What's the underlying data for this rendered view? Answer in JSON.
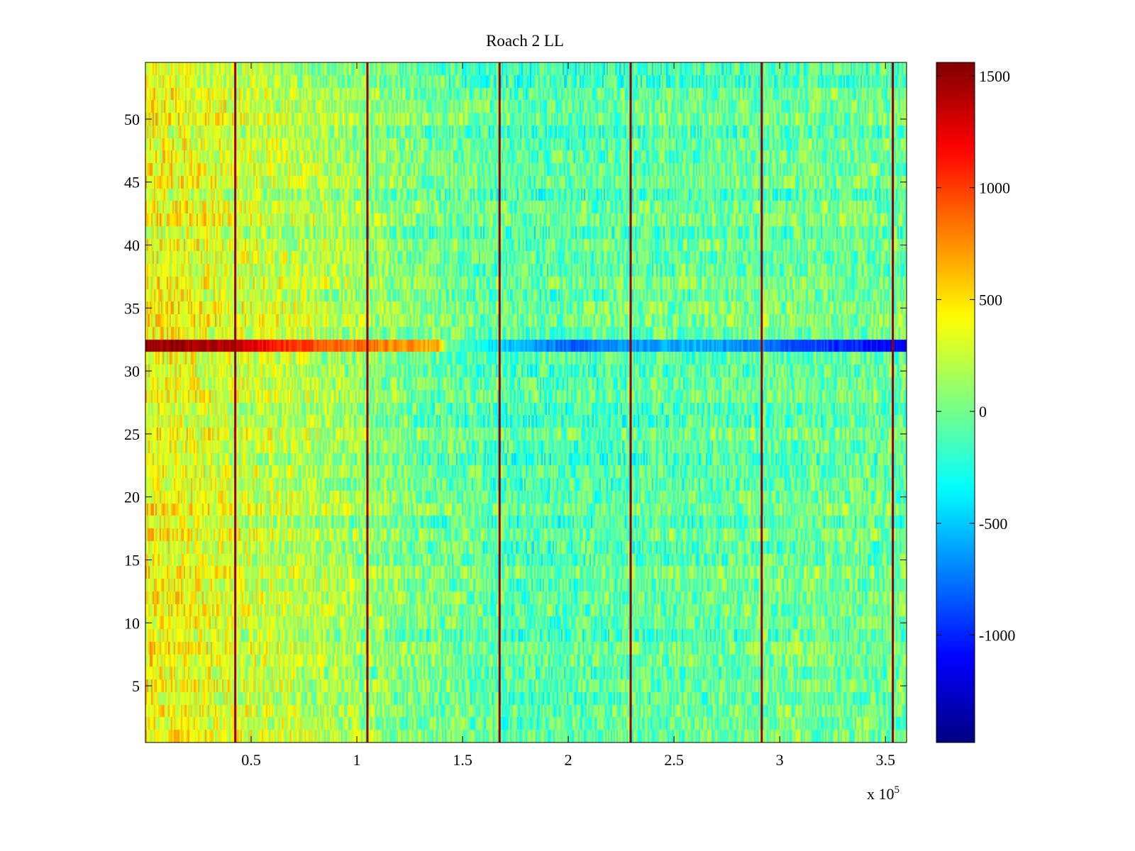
{
  "chart_data": {
    "type": "heatmap",
    "title": "Roach 2 LL",
    "xlabel": "",
    "ylabel": "",
    "x_exponent_label": "x 10",
    "x_exponent_power": "5",
    "xlim": [
      0,
      3.6
    ],
    "ylim": [
      0.5,
      54.5
    ],
    "x_ticks": [
      0.5,
      1,
      1.5,
      2,
      2.5,
      3,
      3.5
    ],
    "x_tick_labels": [
      "0.5",
      "1",
      "1.5",
      "2",
      "2.5",
      "3",
      "3.5"
    ],
    "y_ticks": [
      5,
      10,
      15,
      20,
      25,
      30,
      35,
      40,
      45,
      50
    ],
    "y_tick_labels": [
      "5",
      "10",
      "15",
      "20",
      "25",
      "30",
      "35",
      "40",
      "45",
      "50"
    ],
    "rows": 54,
    "colorbar": {
      "colormap": "jet",
      "clim": [
        -1480,
        1560
      ],
      "ticks": [
        -1000,
        -500,
        0,
        500,
        1000,
        1500
      ],
      "tick_labels": [
        "-1000",
        "-500",
        "0",
        "500",
        "1000",
        "1500"
      ]
    },
    "vertical_spikes_x": [
      0.425,
      1.05,
      1.675,
      2.295,
      2.915,
      3.535
    ],
    "vertical_spike_value": 1500,
    "highlight_row": {
      "row": 32,
      "profile": [
        {
          "x": 0.0,
          "value": 1500
        },
        {
          "x": 0.4,
          "value": 1400
        },
        {
          "x": 0.7,
          "value": 1000
        },
        {
          "x": 1.1,
          "value": 800
        },
        {
          "x": 1.38,
          "value": 650
        },
        {
          "x": 1.42,
          "value": 0
        },
        {
          "x": 1.7,
          "value": -500
        },
        {
          "x": 2.0,
          "value": -800
        },
        {
          "x": 2.6,
          "value": -550
        },
        {
          "x": 3.1,
          "value": -850
        },
        {
          "x": 3.6,
          "value": -1150
        }
      ]
    },
    "background_trend": [
      {
        "x": 0.0,
        "value": 420
      },
      {
        "x": 0.4,
        "value": 300
      },
      {
        "x": 0.9,
        "value": 160
      },
      {
        "x": 1.3,
        "value": 0
      },
      {
        "x": 1.8,
        "value": -100
      },
      {
        "x": 2.5,
        "value": -60
      },
      {
        "x": 3.1,
        "value": -20
      },
      {
        "x": 3.6,
        "value": -30
      }
    ],
    "noise_amplitude": 320
  },
  "colors": {
    "axis": "#000000",
    "background": "#ffffff"
  }
}
